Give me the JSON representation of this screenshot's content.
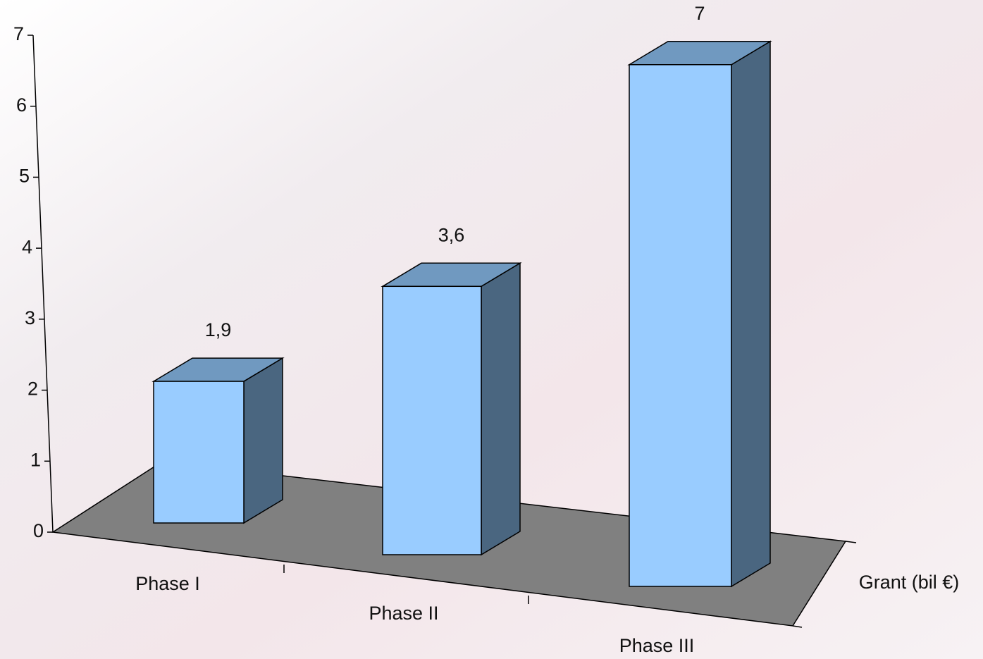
{
  "chart_data": {
    "type": "bar3d",
    "categories": [
      "Phase I",
      "Phase II",
      "Phase III"
    ],
    "series": [
      {
        "name": "Grant (bil €)",
        "color": "#99ccff",
        "values": [
          1.9,
          3.6,
          7
        ],
        "value_labels": [
          "1,9",
          "3,6",
          "7"
        ]
      }
    ],
    "ylim": [
      0,
      7
    ],
    "yticks": [
      0,
      1,
      2,
      3,
      4,
      5,
      6,
      7
    ]
  }
}
